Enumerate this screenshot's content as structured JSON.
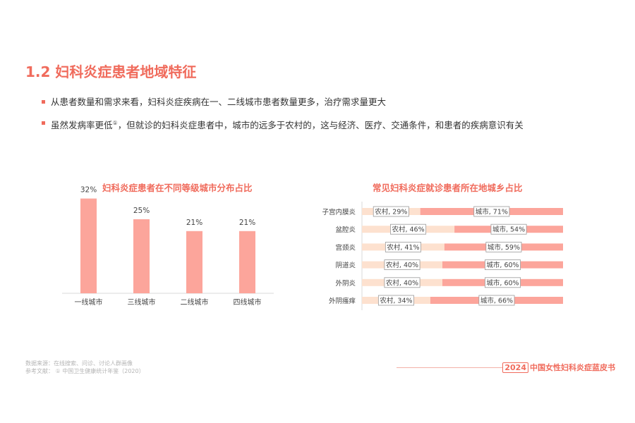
{
  "page": {
    "title": "1.2 妇科炎症患者地域特征",
    "bullets": [
      {
        "text": "从患者数量和需求来看，妇科炎症疾病在一、二线城市患者数量更多，治疗需求量更大",
        "sup": ""
      },
      {
        "text": "虽然发病率更低",
        "sup": "①",
        "text2": "，但就诊的妇科炎症患者中，城市的远多于农村的，这与经济、医疗、交通条件，和患者的疾病意识有关"
      }
    ]
  },
  "chart_data": [
    {
      "type": "bar",
      "title": "妇科炎症患者在不同等级城市分布占比",
      "categories": [
        "一线城市",
        "三线城市",
        "二线城市",
        "四线城市"
      ],
      "values": [
        32,
        25,
        21,
        21
      ],
      "value_labels": [
        "32%",
        "25%",
        "21%",
        "21%"
      ],
      "ylim": [
        0,
        40
      ],
      "color": "#fca59b"
    },
    {
      "type": "bar",
      "orientation": "horizontal-stacked",
      "title": "常见妇科炎症就诊患者所在地城乡占比",
      "categories": [
        "子宫内膜炎",
        "盆腔炎",
        "宫颈炎",
        "阴道炎",
        "外阴炎",
        "外阴瘙痒"
      ],
      "series": [
        {
          "name": "农村",
          "values": [
            29,
            46,
            41,
            40,
            40,
            34
          ],
          "labels": [
            "农村, 29%",
            "农村, 46%",
            "农村, 41%",
            "农村, 40%",
            "农村, 40%",
            "农村, 34%"
          ],
          "color": "#fde1cf"
        },
        {
          "name": "城市",
          "values": [
            71,
            54,
            59,
            60,
            60,
            66
          ],
          "labels": [
            "城市, 71%",
            "城市, 54%",
            "城市, 59%",
            "城市, 60%",
            "城市, 60%",
            "城市, 66%"
          ],
          "color": "#fca59b"
        }
      ],
      "xlim": [
        0,
        100
      ]
    }
  ],
  "footer": {
    "source": "数据来源：在线搜索、问诊、讨论人群画像",
    "reference": "参考文献： ① 中国卫生健康统计年鉴（2020）",
    "brand_year": "2024",
    "brand_text": "中国女性妇科炎症蓝皮书"
  }
}
